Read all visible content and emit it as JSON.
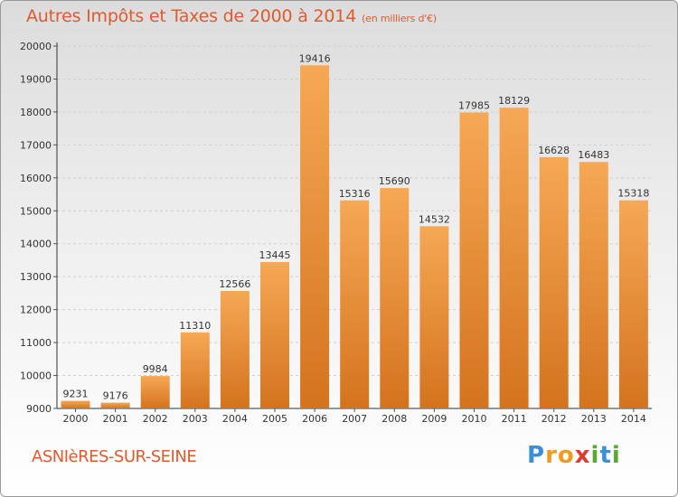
{
  "title": "Autres Impôts et Taxes de 2000 à 2014",
  "unit_note": "(en milliers d'€)",
  "city": "ASNIèRES-SUR-SEINE",
  "logo_letters": [
    "P",
    "r",
    "o",
    "x",
    "i",
    "t",
    "i"
  ],
  "logo_colors": [
    "#3a8fd6",
    "#f39a1d",
    "#f39a1d",
    "#e23b2e",
    "#5aaa32",
    "#3a8fd6",
    "#5aaa32"
  ],
  "colors": {
    "accent": "#e05a2c",
    "bar_light": "#f6a855",
    "bar_dark": "#d4731e",
    "grid": "#cfcfcf"
  },
  "chart_data": {
    "type": "bar",
    "categories": [
      "2000",
      "2001",
      "2002",
      "2003",
      "2004",
      "2005",
      "2006",
      "2007",
      "2008",
      "2009",
      "2010",
      "2011",
      "2012",
      "2013",
      "2014"
    ],
    "values": [
      9231,
      9176,
      9984,
      11310,
      12566,
      13445,
      19416,
      15316,
      15690,
      14532,
      17985,
      18129,
      16628,
      16483,
      15318
    ],
    "ylim": [
      9000,
      20000
    ],
    "yticks": [
      9000,
      10000,
      11000,
      12000,
      13000,
      14000,
      15000,
      16000,
      17000,
      18000,
      19000,
      20000
    ],
    "grid": true
  }
}
